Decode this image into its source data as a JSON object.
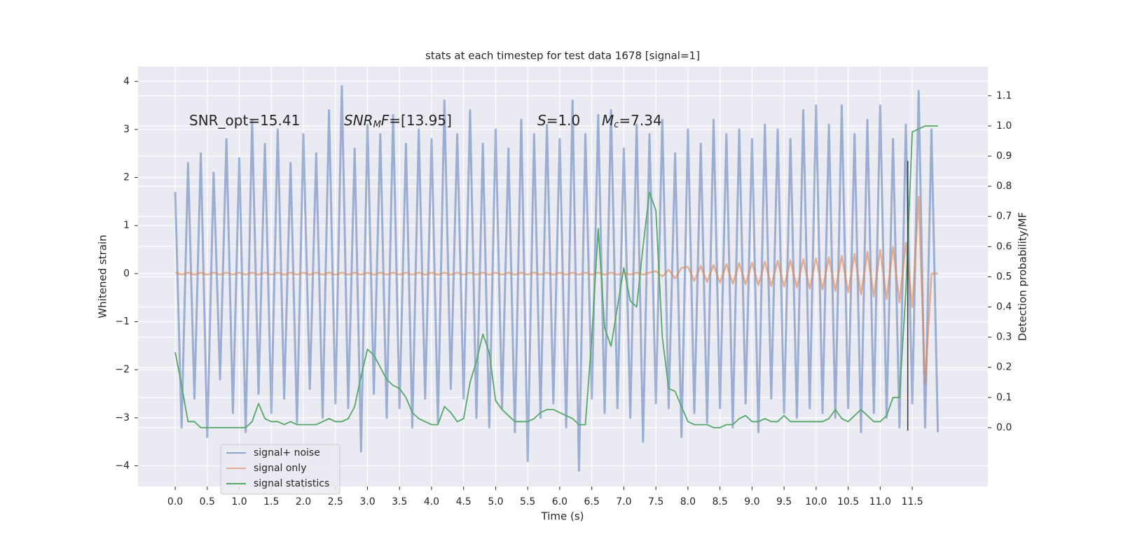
{
  "chart_data": {
    "type": "line",
    "title": "stats at each timestep for test data 1678 [signal=1]",
    "xlabel": "Time (s)",
    "ylabel": "Whitened strain",
    "y2label": "Detection probability/MF",
    "annotations": [
      [
        "SNR_opt=15.41"
      ],
      [
        "SNR",
        "M",
        "F",
        "=[13.95]"
      ],
      [
        "S",
        "=1.0"
      ],
      [
        "M",
        "c",
        "=7.34"
      ]
    ],
    "grid": true,
    "legend": "lower left",
    "vline": 11.43,
    "vline_color": "#333333",
    "xlim": [
      -0.58,
      12.68
    ],
    "ylim": [
      -4.43,
      4.31
    ],
    "y2lim": [
      -0.195,
      1.197
    ],
    "xticks": [
      {
        "value": 0,
        "label": "0.0"
      },
      0.5,
      {
        "value": 1,
        "label": "1.0"
      },
      1.5,
      {
        "value": 2,
        "label": "2.0"
      },
      2.5,
      {
        "value": 3,
        "label": "3.0"
      },
      3.5,
      {
        "value": 4,
        "label": "4.0"
      },
      4.5,
      {
        "value": 5,
        "label": "5.0"
      },
      5.5,
      {
        "value": 6,
        "label": "6.0"
      },
      6.5,
      {
        "value": 7,
        "label": "7.0"
      },
      7.5,
      {
        "value": 8,
        "label": "8.0"
      },
      8.5,
      {
        "value": 9,
        "label": "9.0"
      },
      9.5,
      {
        "value": 10,
        "label": "10.0"
      },
      10.5,
      {
        "value": 11,
        "label": "11.0"
      },
      11.5
    ],
    "yticks": [
      {
        "value": -4,
        "label": "−4"
      },
      {
        "value": -3,
        "label": "−3"
      },
      {
        "value": -2,
        "label": "−2"
      },
      {
        "value": -1,
        "label": "−1"
      },
      0,
      1,
      2,
      3,
      4
    ],
    "y2ticks": [
      {
        "value": 0,
        "label": "0.0"
      },
      0.1,
      0.2,
      0.3,
      0.4,
      0.5,
      0.6,
      0.7,
      0.8,
      0.9,
      {
        "value": 1,
        "label": "1.0"
      },
      1.1
    ],
    "x": [
      0.0,
      0.1,
      0.2,
      0.3,
      0.4,
      0.5,
      0.6,
      0.7,
      0.8,
      0.9,
      1.0,
      1.1,
      1.2,
      1.3,
      1.4,
      1.5,
      1.6,
      1.7,
      1.8,
      1.9,
      2.0,
      2.1,
      2.2,
      2.3,
      2.4,
      2.5,
      2.6,
      2.7,
      2.8,
      2.9,
      3.0,
      3.1,
      3.2,
      3.3,
      3.4,
      3.5,
      3.6,
      3.7,
      3.8,
      3.9,
      4.0,
      4.1,
      4.2,
      4.3,
      4.4,
      4.5,
      4.6,
      4.7,
      4.8,
      4.9,
      5.0,
      5.1,
      5.2,
      5.3,
      5.4,
      5.5,
      5.6,
      5.7,
      5.8,
      5.9,
      6.0,
      6.1,
      6.2,
      6.3,
      6.4,
      6.5,
      6.6,
      6.7,
      6.8,
      6.9,
      7.0,
      7.1,
      7.2,
      7.3,
      7.4,
      7.5,
      7.6,
      7.7,
      7.8,
      7.9,
      8.0,
      8.1,
      8.2,
      8.3,
      8.4,
      8.5,
      8.6,
      8.7,
      8.8,
      8.9,
      9.0,
      9.1,
      9.2,
      9.3,
      9.4,
      9.5,
      9.6,
      9.7,
      9.8,
      9.9,
      10.0,
      10.1,
      10.2,
      10.3,
      10.4,
      10.5,
      10.6,
      10.7,
      10.8,
      10.9,
      11.0,
      11.1,
      11.2,
      11.3,
      11.4,
      11.5,
      11.6,
      11.7,
      11.8,
      11.9
    ],
    "series": [
      {
        "name": "signal+ noise",
        "color": "#4c72b0",
        "values": [
          1.7,
          -3.2,
          2.3,
          -2.6,
          2.5,
          -3.4,
          2.1,
          -2.2,
          2.8,
          -2.9,
          2.4,
          -3.3,
          3.2,
          -2.5,
          2.7,
          -2.9,
          3.0,
          -2.6,
          2.3,
          -3.1,
          2.9,
          -2.4,
          2.5,
          -3.0,
          3.4,
          -2.7,
          3.9,
          -2.8,
          2.6,
          -3.7,
          3.1,
          -2.5,
          2.9,
          -3.0,
          3.3,
          -2.8,
          2.7,
          -3.2,
          3.0,
          -2.6,
          2.8,
          -3.1,
          3.6,
          -2.4,
          2.9,
          -2.6,
          3.4,
          -3.0,
          2.7,
          -3.2,
          3.0,
          -2.8,
          2.6,
          -3.3,
          3.2,
          -3.9,
          2.9,
          -3.0,
          3.1,
          -2.7,
          2.8,
          -3.2,
          3.6,
          -4.1,
          2.9,
          -2.6,
          3.3,
          -2.9,
          3.4,
          -2.8,
          2.6,
          -3.0,
          3.1,
          -3.5,
          2.9,
          -2.7,
          3.2,
          -2.8,
          2.5,
          -3.4,
          3.0,
          -2.9,
          2.7,
          -3.1,
          3.2,
          -2.8,
          2.9,
          -3.2,
          3.0,
          -2.7,
          2.8,
          -3.3,
          3.1,
          -2.6,
          3.0,
          -2.9,
          2.8,
          -3.0,
          3.4,
          -2.8,
          3.5,
          -2.9,
          3.1,
          -3.0,
          3.5,
          -2.8,
          2.9,
          -3.3,
          3.2,
          -2.9,
          3.5,
          -3.0,
          2.8,
          -3.2,
          3.1,
          -2.7,
          3.8,
          -3.2,
          3.0,
          -3.3
        ]
      },
      {
        "name": "signal only",
        "color": "#dd8452",
        "values": [
          0.02,
          -0.02,
          0.02,
          -0.02,
          0.02,
          -0.02,
          0.02,
          -0.02,
          0.02,
          -0.02,
          0.02,
          -0.02,
          0.02,
          -0.02,
          0.02,
          -0.02,
          0.02,
          -0.02,
          0.02,
          -0.02,
          0.02,
          -0.02,
          0.02,
          -0.02,
          0.02,
          -0.02,
          0.02,
          -0.02,
          0.02,
          -0.02,
          0.02,
          -0.02,
          0.02,
          -0.02,
          0.02,
          -0.02,
          0.02,
          -0.02,
          0.02,
          -0.02,
          0.02,
          -0.02,
          0.02,
          -0.02,
          0.02,
          -0.02,
          0.02,
          -0.02,
          0.02,
          -0.02,
          0.02,
          -0.02,
          0.02,
          -0.02,
          0.02,
          -0.02,
          0.02,
          -0.02,
          0.02,
          -0.02,
          0.02,
          -0.02,
          0.02,
          -0.02,
          0.02,
          -0.02,
          0.02,
          -0.02,
          0.02,
          -0.02,
          0.02,
          -0.02,
          0.02,
          -0.02,
          0.02,
          0.05,
          -0.06,
          0.08,
          -0.1,
          0.12,
          0.14,
          -0.15,
          0.16,
          -0.17,
          0.18,
          -0.19,
          0.2,
          -0.21,
          0.22,
          -0.22,
          0.23,
          -0.24,
          0.25,
          -0.26,
          0.27,
          -0.27,
          0.28,
          -0.29,
          0.3,
          -0.31,
          0.32,
          -0.33,
          0.34,
          -0.36,
          0.37,
          -0.39,
          0.41,
          -0.43,
          0.45,
          -0.48,
          0.5,
          -0.53,
          0.56,
          -0.6,
          0.65,
          -0.7,
          1.6,
          -2.3,
          0.0,
          0.0
        ]
      },
      {
        "name": "signal statistics",
        "color": "#55a868",
        "axis": "y2",
        "values": [
          0.25,
          0.14,
          0.02,
          0.02,
          0.0,
          0.0,
          0.0,
          0.0,
          0.0,
          0.0,
          0.0,
          0.0,
          0.02,
          0.08,
          0.03,
          0.02,
          0.02,
          0.01,
          0.02,
          0.01,
          0.01,
          0.01,
          0.01,
          0.02,
          0.03,
          0.02,
          0.02,
          0.03,
          0.07,
          0.17,
          0.26,
          0.24,
          0.2,
          0.16,
          0.14,
          0.13,
          0.1,
          0.05,
          0.03,
          0.02,
          0.01,
          0.01,
          0.07,
          0.05,
          0.02,
          0.03,
          0.15,
          0.22,
          0.31,
          0.25,
          0.09,
          0.06,
          0.04,
          0.02,
          0.02,
          0.02,
          0.03,
          0.05,
          0.06,
          0.06,
          0.05,
          0.04,
          0.03,
          0.01,
          0.01,
          0.3,
          0.66,
          0.33,
          0.27,
          0.4,
          0.53,
          0.42,
          0.4,
          0.6,
          0.78,
          0.72,
          0.3,
          0.13,
          0.12,
          0.07,
          0.02,
          0.01,
          0.01,
          0.01,
          0.0,
          0.0,
          0.01,
          0.01,
          0.03,
          0.04,
          0.02,
          0.02,
          0.03,
          0.02,
          0.02,
          0.04,
          0.02,
          0.02,
          0.02,
          0.02,
          0.02,
          0.02,
          0.03,
          0.06,
          0.03,
          0.02,
          0.04,
          0.06,
          0.04,
          0.02,
          0.02,
          0.04,
          0.1,
          0.1,
          0.45,
          0.98,
          0.99,
          1.0,
          1.0,
          1.0
        ]
      }
    ]
  }
}
